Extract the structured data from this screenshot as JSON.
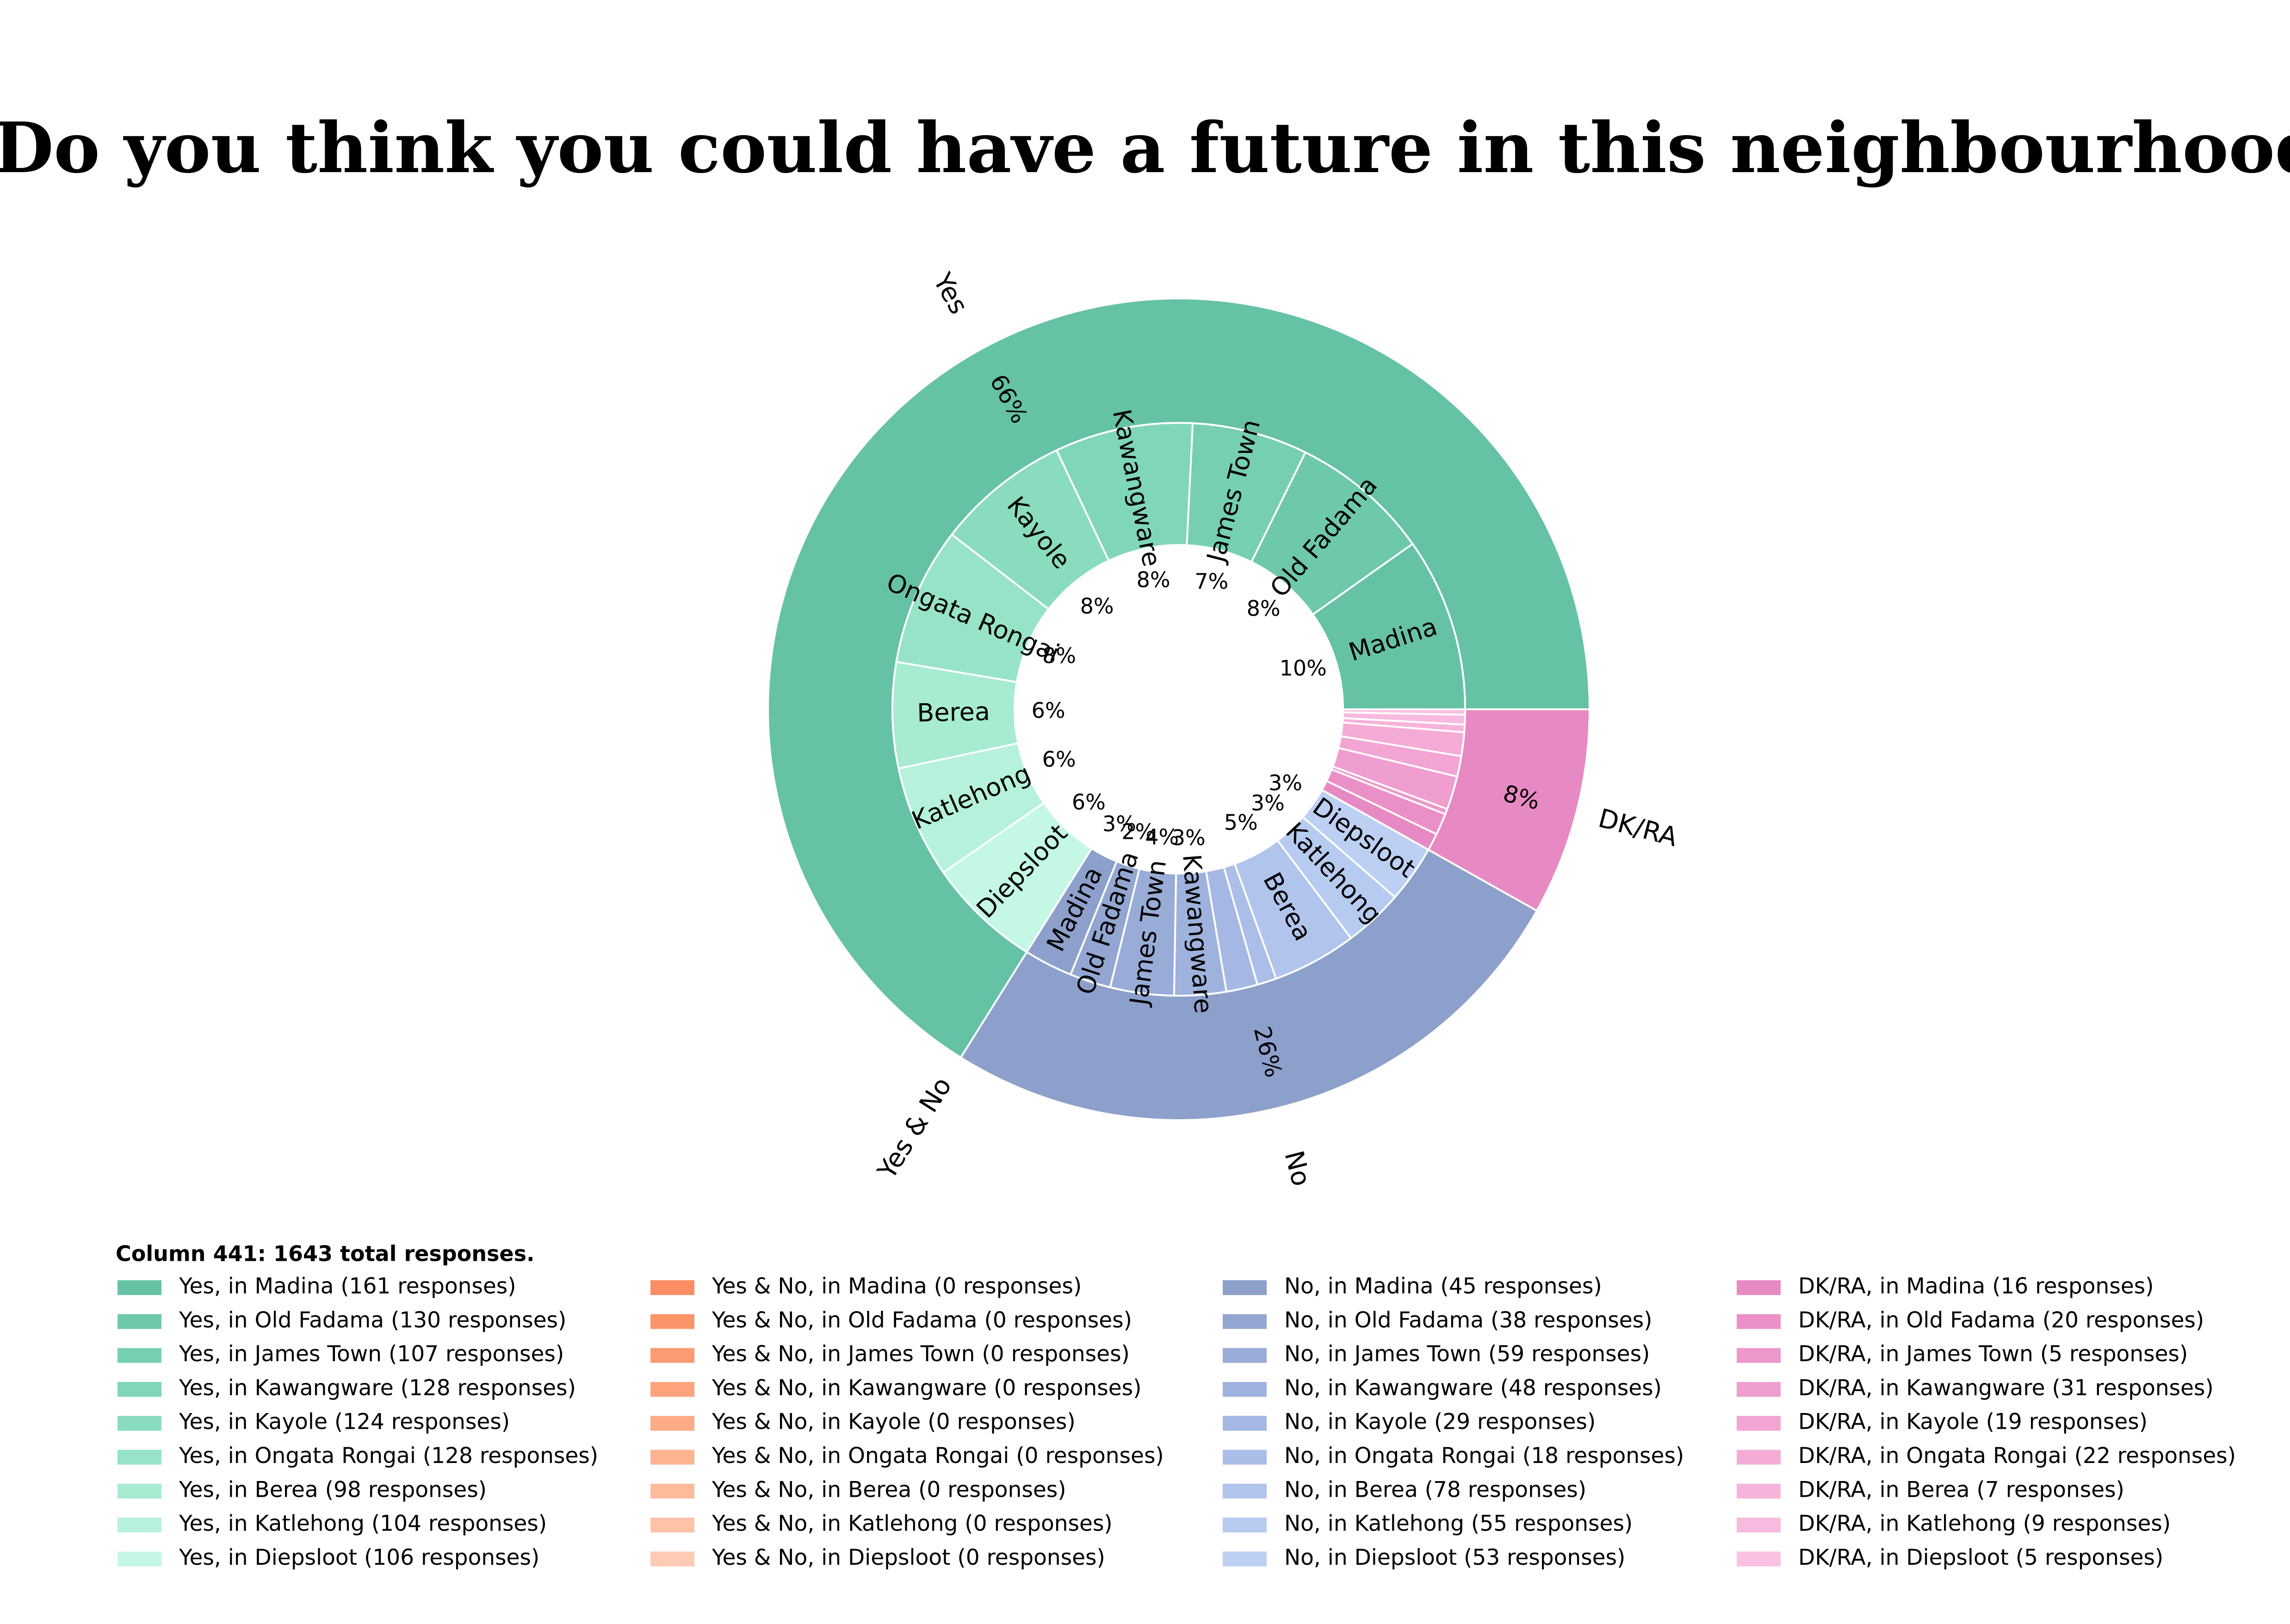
{
  "chart_data": {
    "type": "sunburst",
    "title": "”Do you think you could have a future in this neighbourhood?”",
    "legend_title": "Column 441: 1643 total responses.",
    "groups": [
      {
        "name": "Yes",
        "percent_label": "66%",
        "color": "#66c2a5",
        "segments": [
          {
            "name": "Madina",
            "value": 161,
            "percent_label": "10%",
            "color": "#66c2a5",
            "label": "Yes, in Madina (161 responses)"
          },
          {
            "name": "Old Fadama",
            "value": 130,
            "percent_label": "8%",
            "color": "#6ec9ab",
            "label": "Yes, in Old Fadama (130 responses)"
          },
          {
            "name": "James Town",
            "value": 107,
            "percent_label": "7%",
            "color": "#76cfb1",
            "label": "Yes, in James Town (107 responses)"
          },
          {
            "name": "Kawangware",
            "value": 128,
            "percent_label": "8%",
            "color": "#80d6b8",
            "label": "Yes, in Kawangware (128 responses)"
          },
          {
            "name": "Kayole",
            "value": 124,
            "percent_label": "8%",
            "color": "#8adcbe",
            "label": "Yes, in Kayole (124 responses)"
          },
          {
            "name": "Ongata Rongai",
            "value": 128,
            "percent_label": "8%",
            "color": "#97e3c7",
            "label": "Yes, in Ongata Rongai (128 responses)"
          },
          {
            "name": "Berea",
            "value": 98,
            "percent_label": "6%",
            "color": "#a7ebd1",
            "label": "Yes, in Berea (98 responses)"
          },
          {
            "name": "Katlehong",
            "value": 104,
            "percent_label": "6%",
            "color": "#b6f2db",
            "label": "Yes, in Katlehong (104 responses)"
          },
          {
            "name": "Diepsloot",
            "value": 106,
            "percent_label": "6%",
            "color": "#c4f8e4",
            "label": "Yes, in Diepsloot (106 responses)"
          }
        ]
      },
      {
        "name": "Yes & No",
        "percent_label": null,
        "color": "#fc8d62",
        "segments": [
          {
            "name": null,
            "value": 0,
            "percent_label": null,
            "color": "#fc8d62",
            "label": "Yes & No, in Madina (0 responses)"
          },
          {
            "name": null,
            "value": 0,
            "percent_label": null,
            "color": "#fc9469",
            "label": "Yes & No, in Old Fadama (0 responses)"
          },
          {
            "name": null,
            "value": 0,
            "percent_label": null,
            "color": "#fc9b72",
            "label": "Yes & No, in James Town (0 responses)"
          },
          {
            "name": null,
            "value": 0,
            "percent_label": null,
            "color": "#fca37c",
            "label": "Yes & No, in Kawangware (0 responses)"
          },
          {
            "name": null,
            "value": 0,
            "percent_label": null,
            "color": "#fdab86",
            "label": "Yes & No, in Kayole (0 responses)"
          },
          {
            "name": null,
            "value": 0,
            "percent_label": null,
            "color": "#fdb391",
            "label": "Yes & No, in Ongata Rongai (0 responses)"
          },
          {
            "name": null,
            "value": 0,
            "percent_label": null,
            "color": "#fdbb9c",
            "label": "Yes & No, in Berea (0 responses)"
          },
          {
            "name": null,
            "value": 0,
            "percent_label": null,
            "color": "#fdc3a8",
            "label": "Yes & No, in Katlehong (0 responses)"
          },
          {
            "name": null,
            "value": 0,
            "percent_label": null,
            "color": "#fdcab4",
            "label": "Yes & No, in Diepsloot (0 responses)"
          }
        ]
      },
      {
        "name": "No",
        "percent_label": "26%",
        "color": "#8da0cb",
        "segments": [
          {
            "name": "Madina",
            "value": 45,
            "percent_label": "3%",
            "color": "#8da0cb",
            "label": "No, in Madina (45 responses)"
          },
          {
            "name": "Old Fadama",
            "value": 38,
            "percent_label": "2%",
            "color": "#93a6d1",
            "label": "No, in Old Fadama (38 responses)"
          },
          {
            "name": "James Town",
            "value": 59,
            "percent_label": "4%",
            "color": "#99acd7",
            "label": "No, in James Town (59 responses)"
          },
          {
            "name": "Kawangware",
            "value": 48,
            "percent_label": "3%",
            "color": "#9fb2dd",
            "label": "No, in Kawangware (48 responses)"
          },
          {
            "name": null,
            "value": 29,
            "percent_label": null,
            "color": "#a5b8e3",
            "label": "No, in Kayole (29 responses)"
          },
          {
            "name": null,
            "value": 18,
            "percent_label": null,
            "color": "#abbee8",
            "label": "No, in Ongata Rongai (18 responses)"
          },
          {
            "name": "Berea",
            "value": 78,
            "percent_label": "5%",
            "color": "#b1c4ec",
            "label": "No, in Berea (78 responses)"
          },
          {
            "name": "Katlehong",
            "value": 55,
            "percent_label": "3%",
            "color": "#b7caf0",
            "label": "No, in Katlehong (55 responses)"
          },
          {
            "name": "Diepsloot",
            "value": 53,
            "percent_label": "3%",
            "color": "#bdd0f4",
            "label": "No, in Diepsloot (53 responses)"
          }
        ]
      },
      {
        "name": "DK/RA",
        "percent_label": "8%",
        "color": "#e78ac3",
        "segments": [
          {
            "name": null,
            "value": 16,
            "percent_label": null,
            "color": "#e78ac3",
            "label": "DK/RA, in Madina (16 responses)"
          },
          {
            "name": null,
            "value": 20,
            "percent_label": null,
            "color": "#ea90c7",
            "label": "DK/RA, in Old Fadama (20 responses)"
          },
          {
            "name": null,
            "value": 5,
            "percent_label": null,
            "color": "#ed97cb",
            "label": "DK/RA, in James Town (5 responses)"
          },
          {
            "name": null,
            "value": 31,
            "percent_label": null,
            "color": "#f09ecf",
            "label": "DK/RA, in Kawangware (31 responses)"
          },
          {
            "name": null,
            "value": 19,
            "percent_label": null,
            "color": "#f2a5d3",
            "label": "DK/RA, in Kayole (19 responses)"
          },
          {
            "name": null,
            "value": 22,
            "percent_label": null,
            "color": "#f4acd7",
            "label": "DK/RA, in Ongata Rongai (22 responses)"
          },
          {
            "name": null,
            "value": 7,
            "percent_label": null,
            "color": "#f6b3db",
            "label": "DK/RA, in Berea (7 responses)"
          },
          {
            "name": null,
            "value": 9,
            "percent_label": null,
            "color": "#f8badf",
            "label": "DK/RA, in Katlehong (9 responses)"
          },
          {
            "name": null,
            "value": 5,
            "percent_label": null,
            "color": "#fac1e3",
            "label": "DK/RA, in Diepsloot (5 responses)"
          }
        ]
      }
    ]
  }
}
